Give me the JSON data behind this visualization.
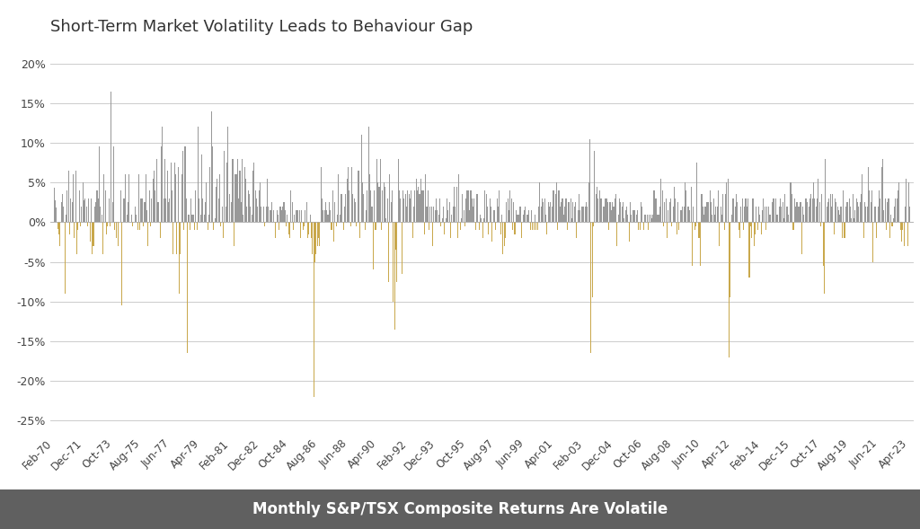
{
  "title": "Short-Term Market Volatility Leads to Behaviour Gap",
  "subtitle": "Monthly S&P/TSX Composite Returns Are Volatile",
  "ylim": [
    -0.27,
    0.22
  ],
  "yticks": [
    -0.25,
    -0.2,
    -0.15,
    -0.1,
    -0.05,
    0.0,
    0.05,
    0.1,
    0.15,
    0.2
  ],
  "positive_color": "#999999",
  "negative_color": "#c9a84c",
  "background_color": "#ffffff",
  "plot_bg_color": "#ffffff",
  "grid_color": "#cccccc",
  "subtitle_bg": "#606060",
  "subtitle_color": "#ffffff",
  "title_fontsize": 13,
  "subtitle_fontsize": 12,
  "tick_fontsize": 9,
  "xtick_labels": [
    "Feb-70",
    "Dec-71",
    "Oct-73",
    "Aug-75",
    "Jun-77",
    "Apr-79",
    "Feb-81",
    "Dec-82",
    "Oct-84",
    "Aug-86",
    "Jun-88",
    "Apr-90",
    "Feb-92",
    "Dec-93",
    "Oct-95",
    "Aug-97",
    "Jun-99",
    "Apr-01",
    "Feb-03",
    "Dec-04",
    "Oct-06",
    "Aug-08",
    "Jun-10",
    "Apr-12",
    "Feb-14",
    "Dec-15",
    "Oct-17",
    "Aug-19",
    "Jun-21",
    "Apr-23"
  ],
  "monthly_returns": [
    0.044,
    0.028,
    0.018,
    -0.009,
    -0.015,
    -0.03,
    0.025,
    0.035,
    0.02,
    -0.09,
    0.01,
    0.04,
    0.065,
    -0.015,
    0.03,
    0.025,
    0.06,
    -0.02,
    0.065,
    -0.04,
    -0.01,
    0.04,
    -0.005,
    0.02,
    0.05,
    0.028,
    0.03,
    0.02,
    -0.005,
    0.03,
    -0.025,
    0.03,
    -0.04,
    -0.03,
    0.02,
    0.025,
    0.04,
    0.03,
    0.095,
    0.02,
    0.01,
    -0.04,
    0.06,
    0.04,
    -0.015,
    -0.005,
    0.03,
    -0.005,
    0.165,
    0.025,
    0.095,
    -0.01,
    -0.02,
    0.0,
    -0.03,
    0.0,
    0.04,
    -0.105,
    0.03,
    0.03,
    0.06,
    0.01,
    0.025,
    0.06,
    0.0,
    0.01,
    -0.005,
    0.0,
    0.02,
    0.01,
    -0.01,
    0.06,
    -0.01,
    0.03,
    0.03,
    -0.005,
    0.025,
    0.06,
    0.015,
    -0.03,
    0.04,
    -0.005,
    0.03,
    0.055,
    0.065,
    0.04,
    0.08,
    0.025,
    0.025,
    -0.02,
    0.095,
    0.12,
    0.03,
    0.08,
    0.03,
    0.065,
    0.025,
    0.03,
    0.075,
    0.04,
    -0.04,
    0.075,
    0.06,
    -0.04,
    0.07,
    -0.09,
    -0.04,
    0.06,
    0.09,
    -0.01,
    0.095,
    0.03,
    -0.165,
    0.01,
    -0.01,
    0.03,
    0.01,
    0.01,
    -0.01,
    0.04,
    -0.01,
    0.12,
    0.03,
    0.01,
    0.085,
    0.03,
    0.01,
    0.025,
    0.05,
    -0.01,
    0.01,
    0.07,
    0.14,
    0.095,
    -0.01,
    0.005,
    0.045,
    0.055,
    0.03,
    0.06,
    -0.005,
    0.02,
    -0.02,
    0.09,
    0.02,
    0.075,
    0.12,
    0.035,
    0.0,
    0.025,
    0.08,
    -0.03,
    0.06,
    0.06,
    0.08,
    0.03,
    0.065,
    0.025,
    0.08,
    0.01,
    0.07,
    0.055,
    0.02,
    0.04,
    0.035,
    0.02,
    0.01,
    0.065,
    0.075,
    0.04,
    0.03,
    0.02,
    0.04,
    0.05,
    0.02,
    0.0,
    0.02,
    -0.005,
    0.02,
    0.055,
    0.02,
    0.015,
    0.015,
    0.025,
    0.015,
    0.0,
    -0.02,
    0.015,
    0.01,
    -0.01,
    0.02,
    0.015,
    0.02,
    0.025,
    0.015,
    -0.005,
    0.01,
    -0.015,
    -0.02,
    0.04,
    0.025,
    -0.01,
    0.01,
    0.015,
    0.015,
    0.015,
    0.015,
    -0.02,
    0.015,
    -0.01,
    -0.005,
    0.015,
    0.025,
    -0.02,
    -0.015,
    0.01,
    -0.02,
    -0.04,
    -0.22,
    -0.05,
    -0.04,
    -0.03,
    -0.02,
    -0.03,
    0.07,
    0.03,
    0.015,
    0.015,
    0.025,
    0.015,
    0.01,
    0.025,
    0.015,
    -0.01,
    0.04,
    -0.025,
    0.025,
    -0.005,
    0.01,
    0.06,
    0.01,
    0.035,
    0.035,
    -0.01,
    0.02,
    0.035,
    0.055,
    0.07,
    0.04,
    -0.005,
    0.07,
    0.035,
    0.03,
    0.025,
    -0.005,
    0.065,
    0.065,
    -0.02,
    0.11,
    0.05,
    0.035,
    -0.01,
    0.015,
    0.04,
    0.12,
    0.06,
    0.04,
    0.02,
    -0.06,
    0.04,
    -0.01,
    0.08,
    0.05,
    0.045,
    0.08,
    -0.01,
    0.04,
    0.05,
    0.045,
    0.005,
    0.03,
    -0.075,
    0.06,
    0.025,
    0.04,
    -0.1,
    -0.135,
    -0.035,
    -0.075,
    0.08,
    0.04,
    0.03,
    -0.065,
    0.04,
    0.03,
    0.035,
    0.02,
    0.04,
    0.035,
    0.03,
    0.04,
    -0.02,
    0.02,
    0.04,
    0.055,
    0.04,
    0.045,
    0.035,
    0.055,
    0.04,
    0.04,
    -0.015,
    0.06,
    0.02,
    0.04,
    -0.01,
    0.02,
    0.02,
    -0.03,
    0.02,
    0.015,
    0.03,
    0.015,
    0.01,
    0.03,
    -0.005,
    0.005,
    0.02,
    -0.015,
    0.005,
    0.03,
    0.015,
    0.025,
    -0.02,
    0.01,
    0.02,
    0.045,
    0.02,
    0.045,
    -0.02,
    0.06,
    -0.01,
    0.005,
    0.035,
    0.015,
    -0.005,
    0.03,
    0.04,
    0.04,
    0.015,
    0.04,
    0.03,
    0.02,
    0.03,
    -0.01,
    0.035,
    0.035,
    -0.01,
    0.01,
    0.005,
    -0.02,
    0.005,
    0.04,
    0.035,
    0.02,
    -0.015,
    0.03,
    0.02,
    -0.025,
    0.015,
    0.015,
    -0.01,
    0.03,
    0.02,
    0.04,
    -0.015,
    0.01,
    -0.04,
    -0.03,
    -0.02,
    0.025,
    0.03,
    0.015,
    0.04,
    0.03,
    -0.01,
    0.025,
    -0.015,
    0.015,
    0.01,
    0.01,
    0.02,
    0.02,
    -0.02,
    0.01,
    0.015,
    0.02,
    0.01,
    0.01,
    0.015,
    -0.01,
    0.015,
    -0.01,
    -0.01,
    0.01,
    -0.01,
    -0.01,
    0.02,
    0.05,
    0.02,
    0.03,
    0.025,
    0.03,
    0.01,
    -0.015,
    0.025,
    0.02,
    0.025,
    0.02,
    0.04,
    0.04,
    0.035,
    0.05,
    -0.01,
    0.04,
    0.02,
    0.025,
    0.03,
    0.01,
    0.02,
    0.03,
    -0.01,
    0.025,
    0.025,
    0.03,
    0.005,
    0.025,
    0.02,
    0.025,
    -0.02,
    0.015,
    0.035,
    0.015,
    0.02,
    0.02,
    0.02,
    0.02,
    0.025,
    0.02,
    0.05,
    0.105,
    -0.165,
    -0.095,
    -0.005,
    0.09,
    0.035,
    0.045,
    0.03,
    0.04,
    0.03,
    0.03,
    0.02,
    0.02,
    0.03,
    0.03,
    0.025,
    -0.01,
    0.025,
    0.015,
    0.025,
    0.02,
    0.03,
    0.035,
    -0.03,
    0.01,
    0.03,
    0.025,
    0.02,
    0.025,
    0.005,
    0.015,
    0.02,
    0.01,
    -0.025,
    0.025,
    0.01,
    0.015,
    0.015,
    0.015,
    0.01,
    0.015,
    -0.01,
    -0.01,
    0.025,
    0.02,
    -0.01,
    0.01,
    0.01,
    0.01,
    -0.01,
    0.01,
    0.01,
    0.005,
    0.01,
    0.04,
    0.03,
    0.03,
    0.01,
    0.01,
    0.02,
    0.055,
    0.04,
    -0.005,
    0.025,
    0.03,
    -0.02,
    0.015,
    0.025,
    0.03,
    -0.005,
    0.02,
    0.045,
    0.03,
    -0.015,
    0.025,
    -0.01,
    0.015,
    0.015,
    0.02,
    0.02,
    0.05,
    0.04,
    0.02,
    0.02,
    0.015,
    0.045,
    -0.055,
    0.02,
    -0.01,
    -0.005,
    0.075,
    -0.02,
    -0.02,
    -0.055,
    0.035,
    0.02,
    0.01,
    0.02,
    0.025,
    0.025,
    0.025,
    0.04,
    0.025,
    0.01,
    0.03,
    0.01,
    0.02,
    0.02,
    0.04,
    -0.03,
    0.02,
    0.01,
    0.035,
    -0.01,
    0.035,
    0.05,
    0.055,
    -0.17,
    -0.095,
    0.01,
    0.03,
    0.03,
    0.02,
    0.035,
    0.025,
    -0.01,
    -0.02,
    0.02,
    0.03,
    -0.01,
    0.02,
    0.03,
    0.02,
    0.03,
    -0.07,
    -0.005,
    -0.02,
    0.03,
    -0.03,
    -0.015,
    0.02,
    -0.01,
    0.02,
    0.01,
    -0.015,
    0.015,
    0.03,
    0.02,
    -0.01,
    0.02,
    0.02,
    0.01,
    0.01,
    0.025,
    0.03,
    0.03,
    0.03,
    0.01,
    0.01,
    0.02,
    0.03,
    0.02,
    0.025,
    0.005,
    0.035,
    0.02,
    0.02,
    0.01,
    0.05,
    0.05,
    0.035,
    -0.01,
    0.03,
    0.02,
    0.025,
    0.02,
    0.02,
    0.025,
    -0.04,
    0.02,
    0.01,
    0.03,
    0.03,
    0.025,
    0.02,
    0.03,
    0.035,
    0.03,
    0.05,
    0.03,
    0.02,
    0.03,
    0.055,
    0.025,
    -0.005,
    0.035,
    -0.055,
    -0.09,
    0.08,
    0.02,
    0.025,
    0.03,
    0.035,
    0.02,
    0.035,
    -0.015,
    0.03,
    0.025,
    0.02,
    0.015,
    0.01,
    0.02,
    -0.02,
    0.04,
    -0.02,
    0.02,
    0.025,
    0.025,
    0.03,
    0.02,
    0.005,
    0.035,
    0.005,
    0.015,
    0.03,
    0.025,
    0.02,
    0.025,
    0.035,
    0.06,
    -0.02,
    0.025,
    0.02,
    0.02,
    0.07,
    0.04,
    0.025,
    0.04,
    -0.05,
    0.02,
    0.02,
    -0.02,
    0.02,
    0.04,
    0.03,
    0.07,
    0.08,
    0.015,
    0.03,
    -0.01,
    0.025,
    0.03,
    -0.02,
    0.01,
    -0.005,
    0.005,
    0.02,
    0.03,
    0.03,
    0.04,
    0.05,
    -0.01,
    -0.025,
    -0.01,
    -0.03,
    0.02,
    0.055,
    -0.03,
    0.05,
    0.02
  ]
}
